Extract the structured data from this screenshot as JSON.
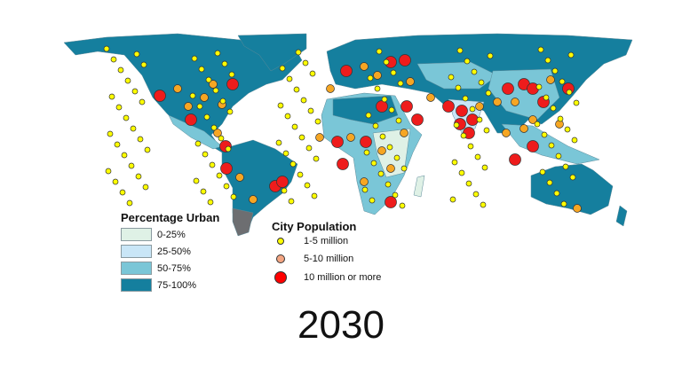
{
  "map": {
    "colors": {
      "ocean": "#ffffff",
      "urban_0_25": "#dff1e6",
      "urban_25_50": "#c9e6f7",
      "urban_50_75": "#7ac6d7",
      "urban_75_100": "#157f9e",
      "no_data": "#6d6e71",
      "city_small": "#ffff00",
      "city_medium": "#f6a623",
      "city_large": "#ee1c1c"
    }
  },
  "legend_urban": {
    "title": "Percentage Urban",
    "items": [
      {
        "label": "0-25%",
        "color": "#dff1e6"
      },
      {
        "label": "25-50%",
        "color": "#c9e6f7"
      },
      {
        "label": "50-75%",
        "color": "#7ac6d7"
      },
      {
        "label": "75-100%",
        "color": "#157f9e"
      }
    ]
  },
  "legend_city": {
    "title": "City Population",
    "items": [
      {
        "label": "1-5 million",
        "color": "#ffff00"
      },
      {
        "label": "5-10 million",
        "color": "#f4a582"
      },
      {
        "label": "10 million or more",
        "color": "#ff0000"
      }
    ]
  },
  "year": "2030"
}
